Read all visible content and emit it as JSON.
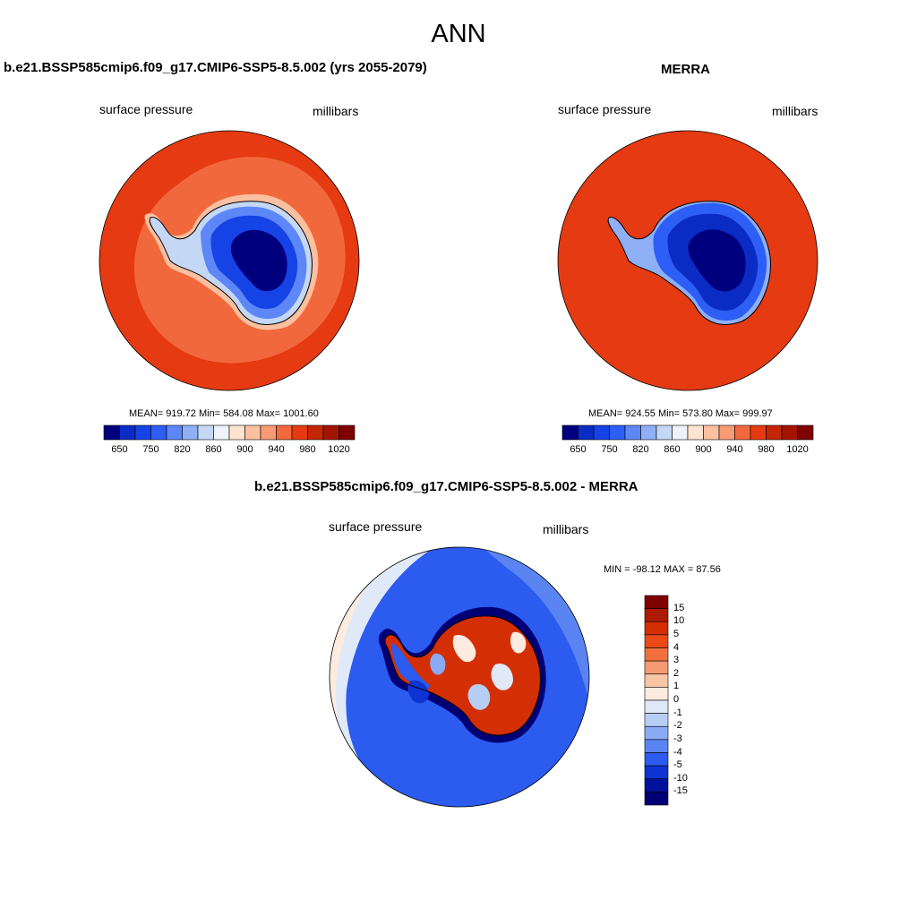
{
  "main_title": "ANN",
  "panels": [
    {
      "title": "b.e21.BSSP585cmip6.f09_g17.CMIP6-SSP5-8.5.002 (yrs 2055-2079)",
      "variable": "surface pressure",
      "units": "millibars",
      "stats": "MEAN= 919.72  Min= 584.08  Max= 1001.60",
      "colorbar_ticks": [
        "650",
        "750",
        "820",
        "860",
        "900",
        "940",
        "980",
        "1020"
      ]
    },
    {
      "title": "MERRA",
      "variable": "surface pressure",
      "units": "millibars",
      "stats": "MEAN= 924.55  Min= 573.80  Max= 999.97",
      "colorbar_ticks": [
        "650",
        "750",
        "820",
        "860",
        "900",
        "940",
        "980",
        "1020"
      ]
    },
    {
      "title": "b.e21.BSSP585cmip6.f09_g17.CMIP6-SSP5-8.5.002 - MERRA",
      "variable": "surface pressure",
      "units": "millibars",
      "stats": "MIN = -98.12 MAX =  87.56",
      "colorbar_ticks": [
        "15",
        "10",
        "5",
        "4",
        "3",
        "2",
        "1",
        "0",
        "-1",
        "-2",
        "-3",
        "-4",
        "-5",
        "-10",
        "-15"
      ]
    }
  ],
  "abs_colors": [
    "#00007f",
    "#0b2cc4",
    "#1643e6",
    "#2d5ef5",
    "#5d86f7",
    "#8fb0f6",
    "#c4d8f5",
    "#eef3fb",
    "#fde4d0",
    "#fbc0a0",
    "#f89a74",
    "#f2683d",
    "#e53a12",
    "#c42606",
    "#a31502",
    "#7f0000"
  ],
  "diff_colors": [
    "#7f0000",
    "#ad1a03",
    "#d42e04",
    "#ea4a18",
    "#f0703f",
    "#f59b74",
    "#f8c6a6",
    "#fdebdf",
    "#dfe9f7",
    "#b8cdf4",
    "#8aaaf3",
    "#5a84f2",
    "#2c5bef",
    "#0d34d2",
    "#00119c",
    "#000075"
  ]
}
